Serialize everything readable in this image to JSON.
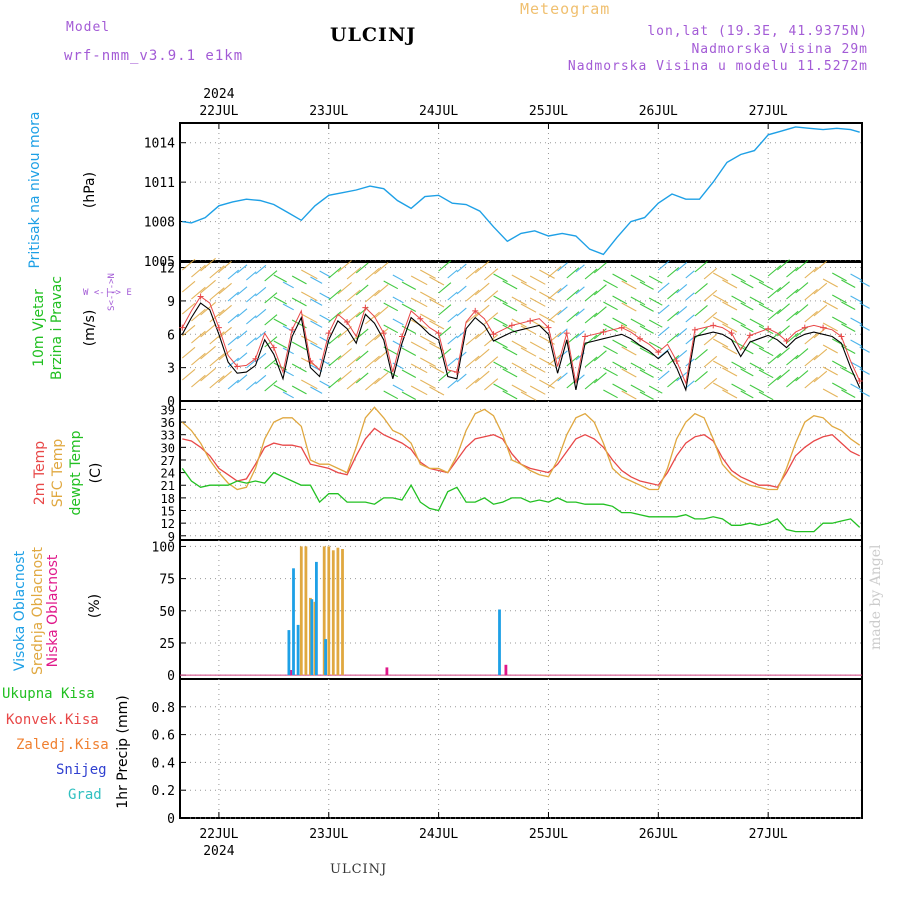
{
  "header": {
    "model_label": "Model",
    "model_name": "wrf-nmm_v3.9.1 e1km",
    "station": "ULCINJ",
    "product": "Meteogram",
    "coords": "lon,lat (19.3E, 41.9375N)",
    "elevation": "Nadmorska Visina 29m",
    "model_elevation": "Nadmorska Visina u modelu 11.5272m",
    "footer_station": "ULCINJ",
    "watermark": "made by Angel"
  },
  "time_axis": {
    "year": "2024",
    "days": [
      "22JUL",
      "23JUL",
      "24JUL",
      "25JUL",
      "26JUL",
      "27JUL"
    ],
    "range_hours": [
      -8.5,
      140.5
    ]
  },
  "panel_labels": {
    "pressure": {
      "title": "Pritisak na nivou mora",
      "unit": "(hPa)"
    },
    "wind": {
      "title1": "10m Vjetar",
      "title2": "Brzina i Pravac",
      "unit": "(m/s)",
      "compass": "W <-|-> E",
      "compass_s": "S<-|->N"
    },
    "temp": {
      "t2m": "2m Temp",
      "sfc": "SFC Temp",
      "dew": "dewpt Temp",
      "unit": "(C)"
    },
    "cloud": {
      "high": "Visoka Oblacnost",
      "mid": "Srednja Oblacnost",
      "low": "Niska Oblacnost",
      "unit": "(%)"
    },
    "precip": {
      "total": "Ukupna Kisa",
      "conv": "Konvek.Kisa",
      "frz": "Zaledj.Kisa",
      "snow": "Snijeg",
      "grad": "Grad",
      "unit": "1hr Precip (mm)"
    }
  },
  "colors": {
    "pressure": "#1ea0e6",
    "t2m": "#e84848",
    "sfc": "#e0a840",
    "dew": "#22c022",
    "high": "#1ea0e6",
    "mid": "#e0a840",
    "low": "#e0188a",
    "wind_black": "#000000",
    "green_label": "#22c022",
    "red_label": "#e84848",
    "orange_label": "#f08030",
    "blue_label": "#3040d0",
    "grad_label": "#30c0c0"
  },
  "chart_data": [
    {
      "type": "line",
      "name": "pressure",
      "ylabel": "Pritisak na nivou mora (hPa)",
      "ylim": [
        1005,
        1015.5
      ],
      "yticks": [
        1005,
        1008,
        1011,
        1014
      ],
      "x": [
        -8,
        -6,
        -3,
        0,
        3,
        6,
        9,
        12,
        15,
        18,
        21,
        24,
        27,
        30,
        33,
        36,
        39,
        42,
        45,
        48,
        51,
        54,
        57,
        60,
        63,
        66,
        69,
        72,
        75,
        78,
        81,
        84,
        87,
        90,
        93,
        96,
        99,
        102,
        105,
        108,
        111,
        114,
        117,
        120,
        123,
        126,
        129,
        132,
        135,
        138,
        140
      ],
      "y": [
        1008,
        1007.9,
        1008.3,
        1009.2,
        1009.5,
        1009.7,
        1009.6,
        1009.3,
        1008.7,
        1008.1,
        1009.2,
        1010.0,
        1010.2,
        1010.4,
        1010.7,
        1010.5,
        1009.6,
        1009.0,
        1009.9,
        1010.0,
        1009.4,
        1009.3,
        1008.8,
        1007.6,
        1006.5,
        1007.1,
        1007.3,
        1006.9,
        1007.1,
        1006.9,
        1005.9,
        1005.5,
        1006.8,
        1008.0,
        1008.3,
        1009.4,
        1010.1,
        1009.7,
        1009.7,
        1011.0,
        1012.5,
        1013.1,
        1013.4,
        1014.6,
        1014.9,
        1015.2,
        1015.1,
        1015.0,
        1015.1,
        1015.0,
        1014.8
      ],
      "grid": true
    },
    {
      "type": "line",
      "name": "wind",
      "ylabel": "10m Vjetar Brzina i Pravac (m/s)",
      "ylim": [
        0,
        12.5
      ],
      "yticks": [
        0,
        3,
        6,
        9,
        12
      ],
      "x": [
        -8,
        -6,
        -4,
        -2,
        0,
        2,
        4,
        6,
        8,
        10,
        12,
        14,
        16,
        18,
        20,
        22,
        24,
        26,
        28,
        30,
        32,
        34,
        36,
        38,
        40,
        42,
        44,
        46,
        48,
        50,
        52,
        54,
        56,
        58,
        60,
        62,
        64,
        66,
        68,
        70,
        72,
        74,
        76,
        78,
        80,
        82,
        84,
        86,
        88,
        90,
        92,
        94,
        96,
        98,
        100,
        102,
        104,
        106,
        108,
        110,
        112,
        114,
        116,
        118,
        120,
        122,
        124,
        126,
        128,
        130,
        132,
        134,
        136,
        138,
        140
      ],
      "y": [
        6,
        7.5,
        8.8,
        8.2,
        6.0,
        3.5,
        2.5,
        2.6,
        3.2,
        5.5,
        4.2,
        2.0,
        5.8,
        7.5,
        3.0,
        2.2,
        5.5,
        7.2,
        6.5,
        5.2,
        7.8,
        7.0,
        5.5,
        2.0,
        5.2,
        7.5,
        6.8,
        6.0,
        5.5,
        2.2,
        2.0,
        6.5,
        7.5,
        6.8,
        5.4,
        5.8,
        6.2,
        6.4,
        6.6,
        6.8,
        6.0,
        2.5,
        5.5,
        1.0,
        5.2,
        5.4,
        5.6,
        5.8,
        6.0,
        5.6,
        5.0,
        4.5,
        3.8,
        4.5,
        3.0,
        1.0,
        5.8,
        6.0,
        6.2,
        6.0,
        5.5,
        4.0,
        5.3,
        5.6,
        5.9,
        5.5,
        4.8,
        5.6,
        6.0,
        6.2,
        6.0,
        5.8,
        5.2,
        3.0,
        1.2
      ]
    },
    {
      "type": "line",
      "name": "temperature",
      "ylabel": "(C)",
      "ylim": [
        8,
        41
      ],
      "yticks": [
        9,
        12,
        15,
        18,
        21,
        24,
        27,
        30,
        33,
        36,
        39
      ],
      "x": [
        -8,
        -6,
        -4,
        -2,
        0,
        2,
        4,
        6,
        8,
        10,
        12,
        14,
        16,
        18,
        20,
        22,
        24,
        26,
        28,
        30,
        32,
        34,
        36,
        38,
        40,
        42,
        44,
        46,
        48,
        50,
        52,
        54,
        56,
        58,
        60,
        62,
        64,
        66,
        68,
        70,
        72,
        74,
        76,
        78,
        80,
        82,
        84,
        86,
        88,
        90,
        92,
        94,
        96,
        98,
        100,
        102,
        104,
        106,
        108,
        110,
        112,
        114,
        116,
        118,
        120,
        122,
        124,
        126,
        128,
        130,
        132,
        134,
        136,
        138,
        140
      ],
      "series": [
        {
          "name": "2m Temp",
          "values": [
            32,
            31.5,
            30,
            28,
            25,
            23.5,
            22,
            22.5,
            26,
            30,
            31,
            30.5,
            30.5,
            30,
            26,
            25.5,
            25,
            24,
            23.5,
            28,
            32,
            34.5,
            33,
            32,
            31,
            29.5,
            26.5,
            25,
            24.5,
            24,
            27,
            30,
            32,
            32.5,
            33,
            32,
            28.5,
            26,
            25,
            24.5,
            24,
            26,
            29,
            32,
            33,
            32,
            30,
            27,
            24.5,
            23,
            22,
            21.5,
            21,
            24,
            28,
            31,
            32.5,
            33,
            31.5,
            27.5,
            24.5,
            23,
            22,
            21,
            21,
            20.5,
            24,
            28,
            30,
            31.5,
            32.5,
            33,
            31,
            29,
            28
          ]
        },
        {
          "name": "SFC Temp",
          "values": [
            36,
            34,
            31,
            27,
            24,
            21.5,
            20,
            20.5,
            25,
            32,
            36,
            37,
            37,
            35,
            27,
            26,
            26,
            25,
            24,
            30,
            37,
            39.5,
            37,
            34,
            33,
            31,
            26,
            25,
            25,
            24,
            28,
            34,
            38,
            39,
            37.5,
            33,
            27,
            26,
            24.5,
            23.5,
            23,
            27,
            33,
            37,
            38,
            36,
            31,
            25,
            23,
            22,
            21,
            20,
            20,
            25,
            32,
            36,
            38,
            37,
            32,
            26,
            23.5,
            22,
            21,
            20.5,
            20,
            20,
            25,
            31,
            36,
            37.5,
            37,
            35,
            34,
            32,
            30.5
          ]
        },
        {
          "name": "dewpt Temp",
          "values": [
            25,
            22,
            20.5,
            21,
            21,
            21,
            22,
            21.5,
            22,
            21.5,
            24,
            23,
            22,
            21,
            21,
            17,
            19,
            19,
            17,
            17,
            17,
            16.5,
            18,
            18,
            17.5,
            21,
            17,
            15.5,
            15,
            19.5,
            20.5,
            17,
            17,
            18,
            16.5,
            17,
            18,
            18,
            17,
            17.5,
            17,
            18,
            17,
            17,
            16.5,
            16.5,
            16.5,
            16,
            14.5,
            14.5,
            14,
            13.5,
            13.5,
            13.5,
            13.5,
            14,
            13,
            13,
            13.5,
            13,
            11.5,
            11.5,
            12,
            11.5,
            12,
            13,
            10.5,
            10,
            10,
            10,
            12,
            12,
            12.5,
            13,
            11
          ]
        }
      ],
      "grid": true
    },
    {
      "type": "bar",
      "name": "clouds",
      "ylabel": "(%)",
      "ylim": [
        -3,
        105
      ],
      "yticks": [
        0,
        25,
        50,
        75,
        100
      ],
      "x": [
        15,
        16,
        17,
        18,
        19,
        20,
        21,
        22,
        23,
        24,
        25,
        26,
        27,
        36,
        62
      ],
      "series": [
        {
          "name": "Visoka Oblacnost",
          "values": [
            0,
            35,
            83,
            39,
            0,
            0,
            59,
            88,
            0,
            28,
            0,
            0,
            0,
            0,
            51
          ]
        },
        {
          "name": "Srednja Oblacnost",
          "values": [
            0,
            0,
            0,
            100,
            100,
            60,
            57,
            0,
            100,
            100,
            97,
            99,
            98,
            0,
            0
          ]
        },
        {
          "name": "Niska Oblacnost",
          "values": [
            4,
            0,
            0,
            0,
            0,
            0,
            0,
            0,
            0,
            0,
            0,
            0,
            0,
            6,
            8
          ]
        }
      ]
    },
    {
      "type": "bar",
      "name": "precip",
      "ylabel": "1hr Precip (mm)",
      "ylim": [
        0,
        1.0
      ],
      "yticks": [
        0,
        0.2,
        0.4,
        0.6,
        0.8
      ],
      "values": [],
      "grid": true
    }
  ]
}
